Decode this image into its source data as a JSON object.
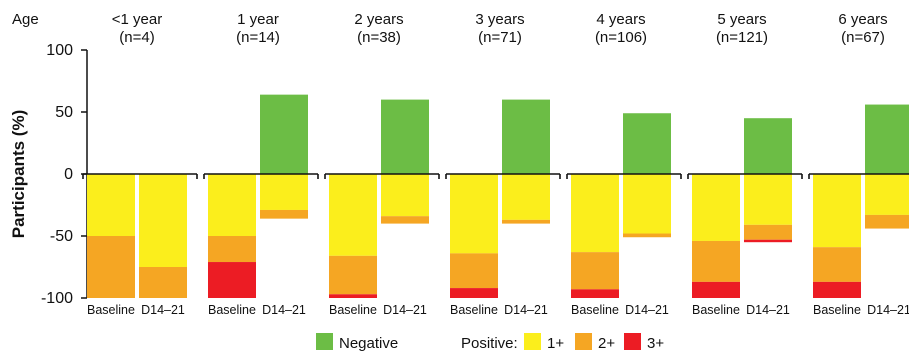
{
  "chart_data": {
    "type": "bar",
    "stacked": true,
    "ylabel": "Participants (%)",
    "age_header": "Age",
    "ylim": [
      -100,
      100
    ],
    "yticks": [
      100,
      50,
      0,
      -50,
      -100
    ],
    "bar_labels": [
      "Baseline",
      "D14–21"
    ],
    "groups": [
      {
        "label": "<1 year",
        "n": "(n=4)",
        "baseline": {
          "negative": 0,
          "pos1": 50,
          "pos2": 50,
          "pos3": 0
        },
        "d14": {
          "negative": 0,
          "pos1": 75,
          "pos2": 25,
          "pos3": 0
        }
      },
      {
        "label": "1 year",
        "n": "(n=14)",
        "baseline": {
          "negative": 0,
          "pos1": 50,
          "pos2": 21,
          "pos3": 29
        },
        "d14": {
          "negative": 64,
          "pos1": 29,
          "pos2": 7,
          "pos3": 0
        }
      },
      {
        "label": "2 years",
        "n": "(n=38)",
        "baseline": {
          "negative": 0,
          "pos1": 66,
          "pos2": 31,
          "pos3": 3
        },
        "d14": {
          "negative": 60,
          "pos1": 34,
          "pos2": 6,
          "pos3": 0
        }
      },
      {
        "label": "3 years",
        "n": "(n=71)",
        "baseline": {
          "negative": 0,
          "pos1": 64,
          "pos2": 28,
          "pos3": 8
        },
        "d14": {
          "negative": 60,
          "pos1": 37,
          "pos2": 3,
          "pos3": 0
        }
      },
      {
        "label": "4 years",
        "n": "(n=106)",
        "baseline": {
          "negative": 0,
          "pos1": 63,
          "pos2": 30,
          "pos3": 7
        },
        "d14": {
          "negative": 49,
          "pos1": 48,
          "pos2": 3,
          "pos3": 0
        }
      },
      {
        "label": "5 years",
        "n": "(n=121)",
        "baseline": {
          "negative": 0,
          "pos1": 54,
          "pos2": 33,
          "pos3": 13
        },
        "d14": {
          "negative": 45,
          "pos1": 41,
          "pos2": 12,
          "pos3": 2
        }
      },
      {
        "label": "6 years",
        "n": "(n=67)",
        "baseline": {
          "negative": 0,
          "pos1": 59,
          "pos2": 28,
          "pos3": 13
        },
        "d14": {
          "negative": 56,
          "pos1": 33,
          "pos2": 11,
          "pos3": 0
        }
      }
    ],
    "legend": {
      "negative": "Negative",
      "positive_label": "Positive:",
      "pos1": "1+",
      "pos2": "2+",
      "pos3": "3+"
    },
    "colors": {
      "negative": "#6cbd45",
      "pos1": "#fbee1c",
      "pos2": "#f5a623",
      "pos3": "#ec1c24"
    }
  }
}
